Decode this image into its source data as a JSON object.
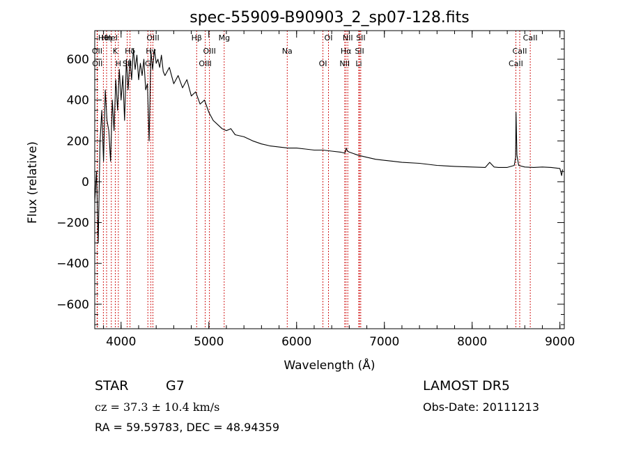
{
  "chart_data": {
    "type": "line",
    "title": "spec-55909-B90903_2_sp07-128.fits",
    "xlabel": "Wavelength (Å)",
    "ylabel": "Flux (relative)",
    "xlim": [
      3700,
      9050
    ],
    "ylim": [
      -720,
      740
    ],
    "x_ticks": [
      4000,
      5000,
      6000,
      7000,
      8000,
      9000
    ],
    "y_ticks": [
      -600,
      -400,
      -200,
      0,
      200,
      400,
      600
    ],
    "grid": false,
    "line_color": "#000000",
    "marker_color": "#cc0000",
    "series": [
      {
        "x": [
          3700,
          3720,
          3740,
          3760,
          3780,
          3800,
          3820,
          3840,
          3860,
          3880,
          3900,
          3920,
          3940,
          3960,
          3980,
          4000,
          4020,
          4040,
          4060,
          4080,
          4100,
          4120,
          4140,
          4160,
          4180,
          4200,
          4220,
          4240,
          4260,
          4280,
          4300,
          4320,
          4340,
          4360,
          4380,
          4400,
          4420,
          4440,
          4460,
          4480,
          4500,
          4550,
          4600,
          4650,
          4700,
          4750,
          4800,
          4850,
          4900,
          4950,
          5000,
          5050,
          5100,
          5150,
          5200,
          5250,
          5300,
          5400,
          5500,
          5600,
          5700,
          5800,
          5900,
          6000,
          6100,
          6200,
          6300,
          6400,
          6500,
          6550,
          6565,
          6580,
          6600,
          6700,
          6800,
          6900,
          7000,
          7100,
          7200,
          7400,
          7600,
          7800,
          8000,
          8150,
          8200,
          8250,
          8300,
          8400,
          8480,
          8495,
          8500,
          8510,
          8530,
          8600,
          8700,
          8800,
          8900,
          9000,
          9020,
          9030
        ],
        "y": [
          -100,
          50,
          -300,
          200,
          350,
          100,
          450,
          300,
          250,
          100,
          400,
          250,
          500,
          350,
          550,
          400,
          520,
          300,
          600,
          450,
          600,
          500,
          650,
          550,
          620,
          500,
          580,
          520,
          600,
          450,
          480,
          200,
          640,
          550,
          650,
          580,
          600,
          560,
          620,
          540,
          520,
          560,
          480,
          520,
          460,
          500,
          420,
          440,
          380,
          400,
          340,
          300,
          280,
          260,
          250,
          260,
          230,
          220,
          200,
          185,
          175,
          170,
          165,
          165,
          160,
          155,
          155,
          150,
          145,
          140,
          165,
          150,
          145,
          130,
          120,
          110,
          105,
          100,
          95,
          90,
          80,
          75,
          72,
          70,
          95,
          72,
          70,
          70,
          80,
          120,
          340,
          130,
          80,
          72,
          70,
          72,
          70,
          65,
          30,
          60
        ]
      }
    ],
    "lines": [
      {
        "label": "Hθ",
        "x": 3798
      },
      {
        "label": "OII",
        "x": 3727
      },
      {
        "label": "OII",
        "x": 3730
      },
      {
        "label": "Hη",
        "x": 3835
      },
      {
        "label": "K",
        "x": 3934
      },
      {
        "label": "H",
        "x": 3969
      },
      {
        "label": "HeI",
        "x": 3889
      },
      {
        "label": "Hδ",
        "x": 4102
      },
      {
        "label": "SII",
        "x": 4070
      },
      {
        "label": "OIII",
        "x": 4363
      },
      {
        "label": "Hγ",
        "x": 4340
      },
      {
        "label": "G",
        "x": 4305
      },
      {
        "label": "Hβ",
        "x": 4861
      },
      {
        "label": "OIII",
        "x": 5007
      },
      {
        "label": "OIII",
        "x": 4959
      },
      {
        "label": "Mg",
        "x": 5175
      },
      {
        "label": "Na",
        "x": 5893
      },
      {
        "label": "OI",
        "x": 6300
      },
      {
        "label": "OI",
        "x": 6363
      },
      {
        "label": "Hα",
        "x": 6563
      },
      {
        "label": "NII",
        "x": 6548
      },
      {
        "label": "NII",
        "x": 6583
      },
      {
        "label": "SII",
        "x": 6717
      },
      {
        "label": "Li",
        "x": 6708
      },
      {
        "label": "SII",
        "x": 6731
      },
      {
        "label": "CaII",
        "x": 8542
      },
      {
        "label": "CaII",
        "x": 8498
      },
      {
        "label": "CaII",
        "x": 8662
      }
    ]
  },
  "info": {
    "class": "STAR",
    "subclass": "G7",
    "survey": "LAMOST DR5",
    "cz": "cz = 37.3 ± 10.4 km/s",
    "obs_date": "Obs-Date: 20111213",
    "coords": "RA =  59.59783, DEC =  48.94359"
  }
}
